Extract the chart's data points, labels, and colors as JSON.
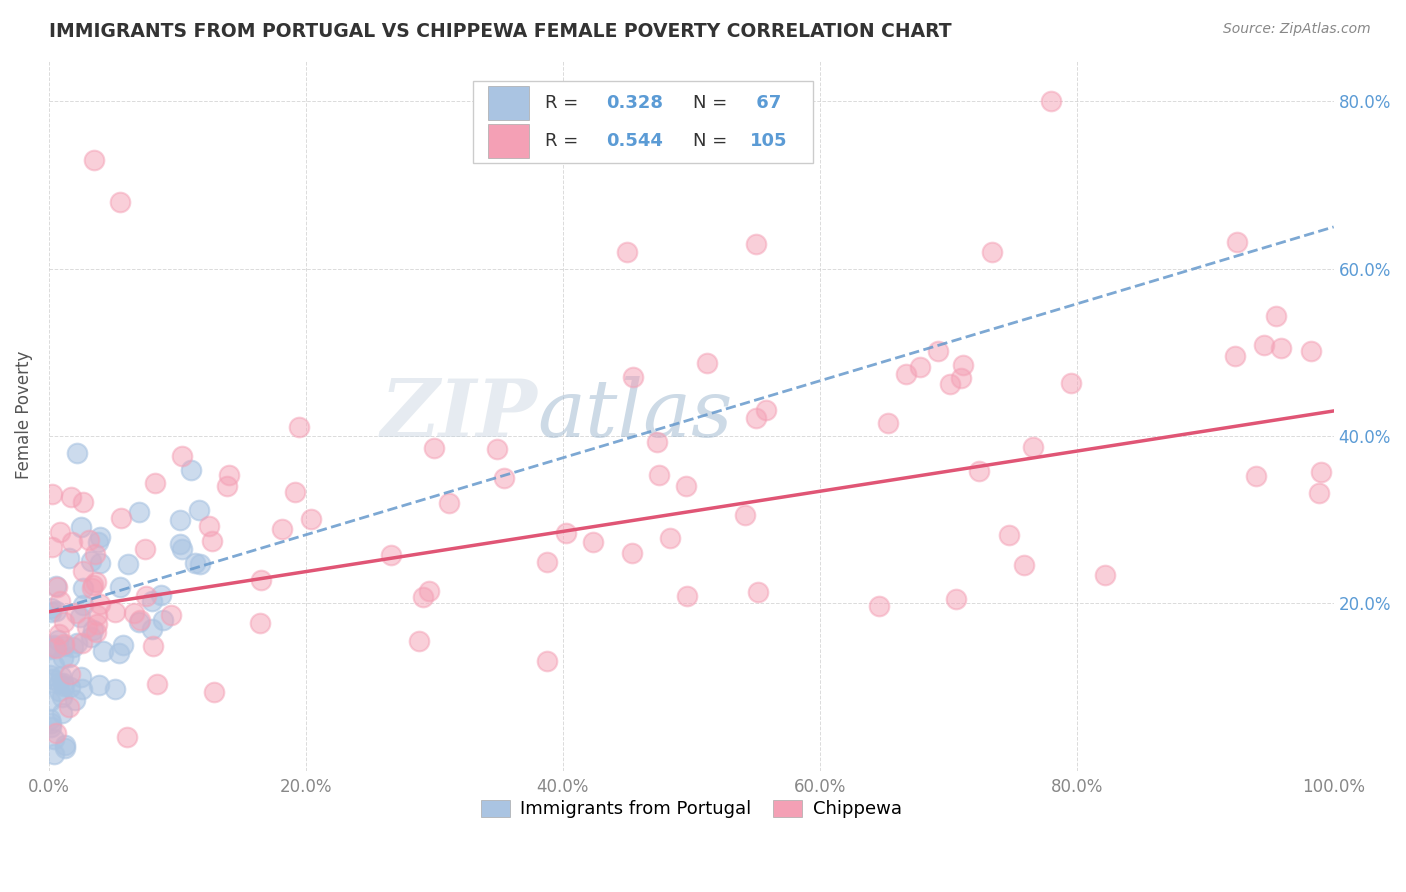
{
  "title": "IMMIGRANTS FROM PORTUGAL VS CHIPPEWA FEMALE POVERTY CORRELATION CHART",
  "source": "Source: ZipAtlas.com",
  "ylabel": "Female Poverty",
  "xlim": [
    0.0,
    1.0
  ],
  "ylim": [
    0.0,
    0.85
  ],
  "xtick_labels": [
    "0.0%",
    "20.0%",
    "40.0%",
    "60.0%",
    "80.0%",
    "100.0%"
  ],
  "right_ytick_labels": [
    "20.0%",
    "40.0%",
    "60.0%",
    "80.0%"
  ],
  "legend_labels": [
    "Immigrants from Portugal",
    "Chippewa"
  ],
  "R_portugal": 0.328,
  "N_portugal": 67,
  "R_chippewa": 0.544,
  "N_chippewa": 105,
  "color_portugal": "#aac4e2",
  "color_chippewa": "#f4a0b5",
  "trendline_portugal_color": "#6699cc",
  "trendline_chippewa_color": "#e05575",
  "background_color": "#ffffff",
  "watermark_zip": "ZIP",
  "watermark_atlas": "atlas",
  "grid_color": "#cccccc",
  "title_color": "#333333",
  "source_color": "#888888",
  "ylabel_color": "#555555",
  "tick_color": "#888888",
  "right_tick_color": "#5b9bd5"
}
